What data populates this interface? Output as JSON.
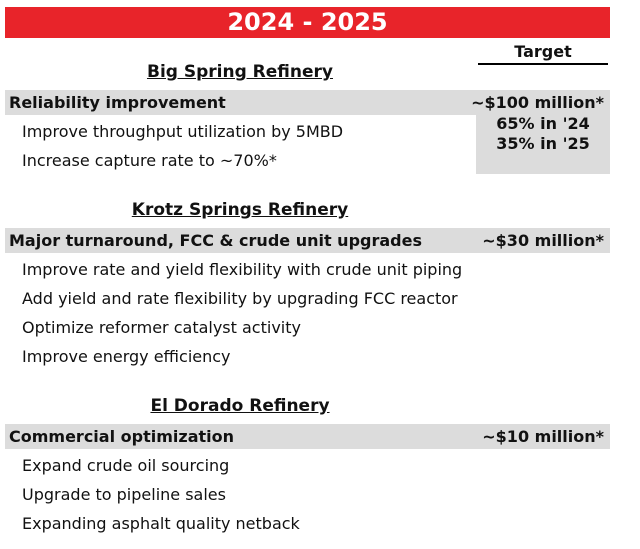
{
  "header": {
    "title": "2024 - 2025",
    "target_label": "Target"
  },
  "sections": [
    {
      "name": "Big Spring Refinery",
      "category": "Reliability improvement",
      "target": "~$100 million*",
      "target_notes": [
        "65% in '24",
        "35% in '25"
      ],
      "items": [
        "Improve throughput utilization by 5MBD",
        "Increase capture rate to ~70%*"
      ]
    },
    {
      "name": "Krotz Springs Refinery",
      "category": "Major turnaround, FCC & crude unit upgrades",
      "target": "~$30 million*",
      "target_notes": [],
      "items": [
        "Improve rate and yield flexibility with crude unit piping",
        "Add yield and rate flexibility by upgrading FCC reactor",
        "Optimize reformer catalyst activity",
        "Improve energy efficiency"
      ]
    },
    {
      "name": "El Dorado Refinery",
      "category": "Commercial optimization",
      "target": "~$10 million*",
      "target_notes": [],
      "items": [
        "Expand crude oil sourcing",
        "Upgrade to pipeline sales",
        "Expanding asphalt quality netback"
      ]
    }
  ]
}
